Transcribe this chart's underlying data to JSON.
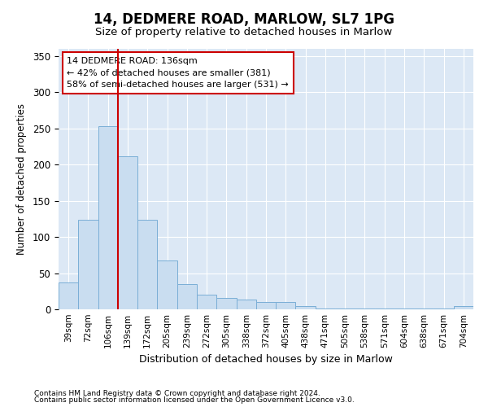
{
  "title": "14, DEDMERE ROAD, MARLOW, SL7 1PG",
  "subtitle": "Size of property relative to detached houses in Marlow",
  "xlabel": "Distribution of detached houses by size in Marlow",
  "ylabel": "Number of detached properties",
  "categories": [
    "39sqm",
    "72sqm",
    "106sqm",
    "139sqm",
    "172sqm",
    "205sqm",
    "239sqm",
    "272sqm",
    "305sqm",
    "338sqm",
    "372sqm",
    "405sqm",
    "438sqm",
    "471sqm",
    "505sqm",
    "538sqm",
    "571sqm",
    "604sqm",
    "638sqm",
    "671sqm",
    "704sqm"
  ],
  "values": [
    37,
    124,
    253,
    212,
    124,
    67,
    35,
    20,
    16,
    13,
    10,
    10,
    5,
    1,
    1,
    1,
    1,
    1,
    1,
    1,
    4
  ],
  "bar_color": "#c9ddf0",
  "bar_edge_color": "#7aaed6",
  "vline_x": 2.5,
  "vline_color": "#cc0000",
  "annotation_text": "14 DEDMERE ROAD: 136sqm\n← 42% of detached houses are smaller (381)\n58% of semi-detached houses are larger (531) →",
  "annotation_box_color": "#ffffff",
  "annotation_box_edge": "#cc0000",
  "ylim": [
    0,
    360
  ],
  "yticks": [
    0,
    50,
    100,
    150,
    200,
    250,
    300,
    350
  ],
  "footnote1": "Contains HM Land Registry data © Crown copyright and database right 2024.",
  "footnote2": "Contains public sector information licensed under the Open Government Licence v3.0.",
  "bg_color": "#ffffff",
  "plot_bg_color": "#dce8f5",
  "grid_color": "#ffffff",
  "title_fontsize": 12,
  "subtitle_fontsize": 9.5
}
